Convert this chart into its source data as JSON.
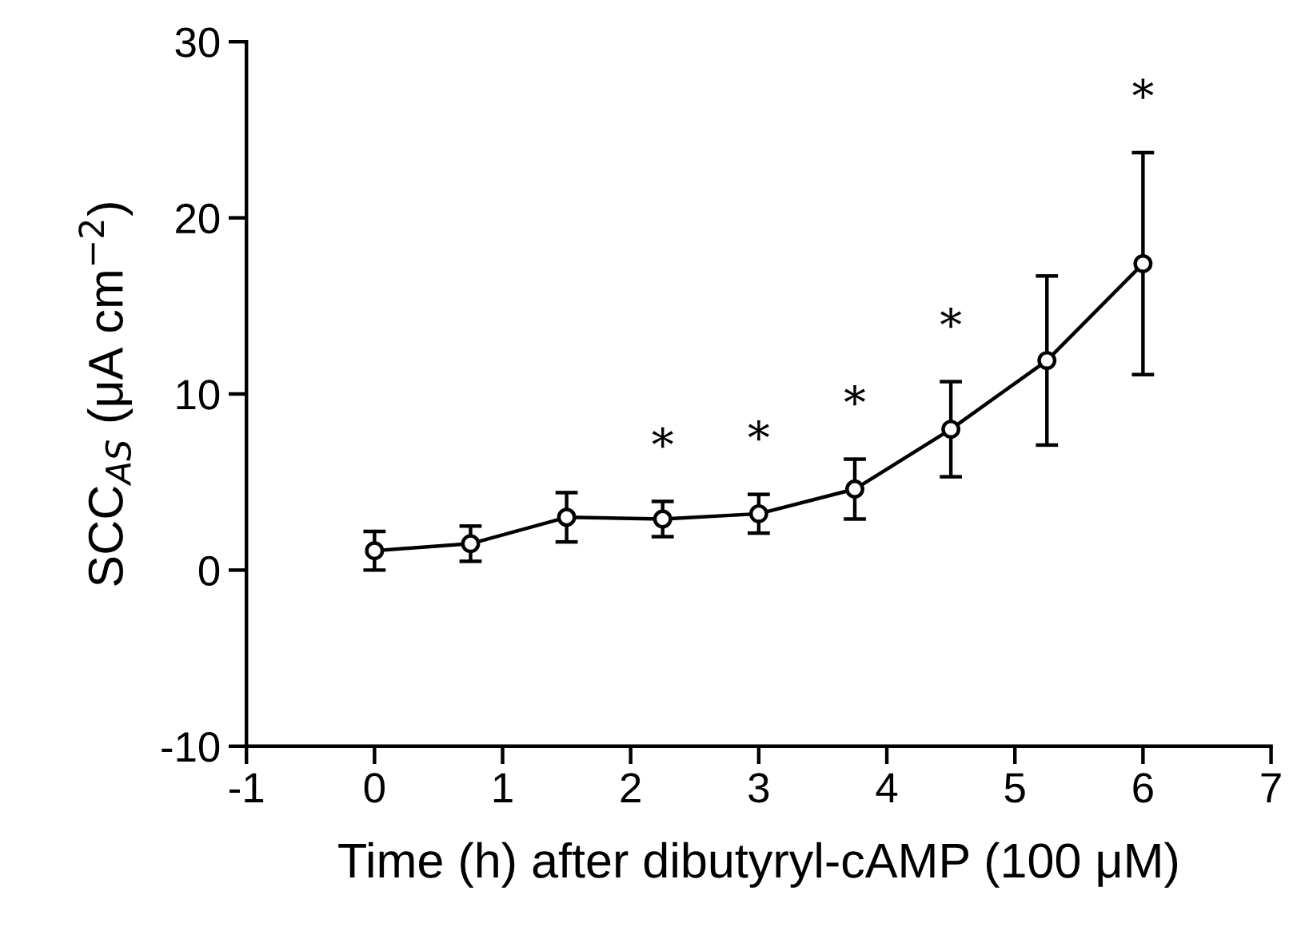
{
  "chart_data": {
    "type": "line",
    "xlabel": "Time (h) after dibutyryl-cAMP (100 μM)",
    "ylabel": "SCC$_{AS}$ (μA cm$^{−2}$)",
    "x": [
      0,
      0.75,
      1.5,
      2.25,
      3,
      3.75,
      4.5,
      5.25,
      6
    ],
    "values": [
      1.1,
      1.5,
      3.0,
      2.9,
      3.2,
      4.6,
      8.0,
      11.9,
      17.4
    ],
    "errors": [
      1.1,
      1.0,
      1.4,
      1.0,
      1.1,
      1.7,
      2.7,
      4.8,
      6.3
    ],
    "color": "#000000",
    "marker": "circle",
    "line_style": "solid",
    "grid": false,
    "xlim": [
      -1,
      7
    ],
    "xticks": [
      -1,
      0,
      1,
      2,
      3,
      4,
      5,
      6,
      7
    ],
    "ylim": [
      -10,
      30
    ],
    "yticks": [
      -10,
      0,
      10,
      20,
      30
    ],
    "annotations": [
      {
        "text": "*",
        "x": 2.25,
        "y": 3.9
      },
      {
        "text": "*",
        "x": 3,
        "y": 4.3
      },
      {
        "text": "*",
        "x": 3.75,
        "y": 6.3
      },
      {
        "text": "*",
        "x": 4.5,
        "y": 10.7
      },
      {
        "text": "*",
        "x": 6,
        "y": 23.7
      }
    ]
  }
}
